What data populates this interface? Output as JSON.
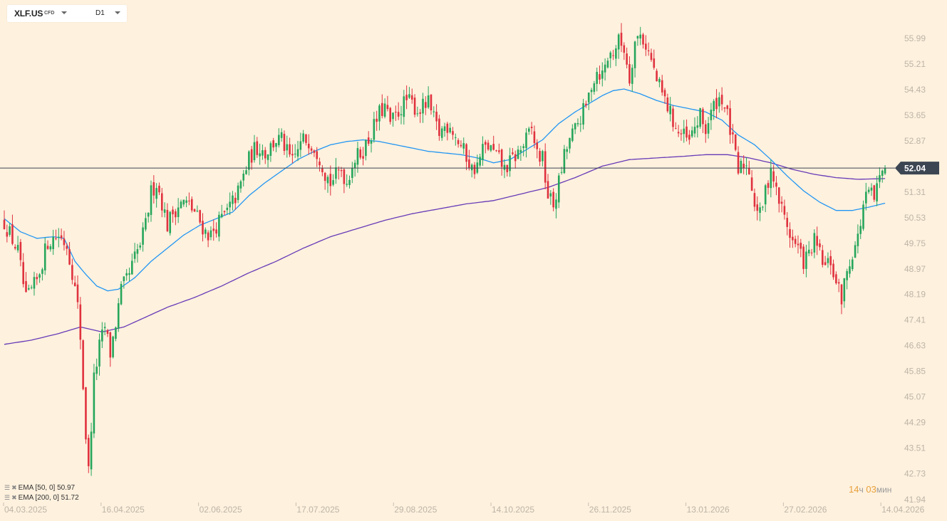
{
  "toolbar": {
    "symbol": "XLF.US",
    "instrument_type": "CFD",
    "timeframe": "D1"
  },
  "indicators": [
    {
      "label": "EMA [50, 0] 50.97",
      "color": "#2196f3"
    },
    {
      "label": "EMA [200, 0] 51.72",
      "color": "#673ab7"
    }
  ],
  "countdown": {
    "hours": "14",
    "hours_unit": "ч",
    "minutes": "03",
    "minutes_unit": "мин"
  },
  "chart_data": {
    "type": "candlestick",
    "timeframe": "D1",
    "up_color": "#26a65b",
    "down_color": "#e0323e",
    "current_price": 52.04,
    "price_ticks": [
      55.99,
      55.21,
      54.43,
      53.65,
      52.87,
      51.31,
      50.53,
      49.75,
      48.97,
      48.19,
      47.41,
      46.63,
      45.85,
      45.07,
      44.29,
      43.51,
      42.73,
      41.94
    ],
    "date_ticks": [
      "04.03.2025",
      "16.04.2025",
      "02.06.2025",
      "17.07.2025",
      "29.08.2025",
      "14.10.2025",
      "26.11.2025",
      "13.01.2026",
      "27.02.2026",
      "14.04.2026"
    ],
    "anchors": [
      [
        0,
        50.4
      ],
      [
        5,
        49.5
      ],
      [
        8,
        48.0
      ],
      [
        12,
        48.6
      ],
      [
        16,
        49.8
      ],
      [
        20,
        50.0
      ],
      [
        23,
        49.7
      ],
      [
        25,
        48.9
      ],
      [
        27,
        47.8
      ],
      [
        28,
        46.9
      ],
      [
        30,
        43.9
      ],
      [
        31,
        42.8
      ],
      [
        33,
        45.6
      ],
      [
        35,
        46.6
      ],
      [
        37,
        47.2
      ],
      [
        39,
        46.4
      ],
      [
        41,
        47.3
      ],
      [
        43,
        48.3
      ],
      [
        46,
        48.8
      ],
      [
        48,
        49.3
      ],
      [
        50,
        49.7
      ],
      [
        52,
        50.3
      ],
      [
        54,
        51.3
      ],
      [
        56,
        51.6
      ],
      [
        58,
        51.0
      ],
      [
        60,
        50.3
      ],
      [
        62,
        50.7
      ],
      [
        64,
        50.9
      ],
      [
        66,
        51.0
      ],
      [
        68,
        50.9
      ],
      [
        70,
        50.7
      ],
      [
        72,
        50.4
      ],
      [
        74,
        50.1
      ],
      [
        76,
        50.0
      ],
      [
        78,
        50.3
      ],
      [
        80,
        50.5
      ],
      [
        82,
        50.7
      ],
      [
        84,
        51.0
      ],
      [
        86,
        51.3
      ],
      [
        88,
        51.8
      ],
      [
        90,
        52.3
      ],
      [
        92,
        52.6
      ],
      [
        94,
        52.7
      ],
      [
        96,
        52.5
      ],
      [
        98,
        52.7
      ],
      [
        100,
        52.9
      ],
      [
        102,
        52.9
      ],
      [
        104,
        52.5
      ],
      [
        106,
        52.2
      ],
      [
        108,
        52.6
      ],
      [
        110,
        52.9
      ],
      [
        112,
        52.9
      ],
      [
        114,
        52.7
      ],
      [
        116,
        52.4
      ],
      [
        118,
        51.9
      ],
      [
        120,
        51.6
      ],
      [
        122,
        51.8
      ],
      [
        124,
        52.0
      ],
      [
        126,
        51.6
      ],
      [
        128,
        52.2
      ],
      [
        130,
        52.4
      ],
      [
        132,
        52.6
      ],
      [
        134,
        52.9
      ],
      [
        136,
        53.3
      ],
      [
        138,
        53.7
      ],
      [
        140,
        53.9
      ],
      [
        142,
        53.4
      ],
      [
        144,
        53.6
      ],
      [
        146,
        53.9
      ],
      [
        148,
        54.1
      ],
      [
        150,
        54.0
      ],
      [
        152,
        53.8
      ],
      [
        154,
        53.9
      ],
      [
        156,
        54.0
      ],
      [
        158,
        53.5
      ],
      [
        160,
        53.1
      ],
      [
        162,
        53.3
      ],
      [
        164,
        53.4
      ],
      [
        166,
        53.0
      ],
      [
        168,
        52.7
      ],
      [
        170,
        52.4
      ],
      [
        172,
        52.0
      ],
      [
        174,
        52.1
      ],
      [
        176,
        52.6
      ],
      [
        178,
        52.7
      ],
      [
        180,
        52.5
      ],
      [
        182,
        52.3
      ],
      [
        184,
        52.0
      ],
      [
        186,
        52.2
      ],
      [
        188,
        52.4
      ],
      [
        190,
        52.6
      ],
      [
        192,
        52.9
      ],
      [
        194,
        53.2
      ],
      [
        196,
        52.5
      ],
      [
        198,
        52.3
      ],
      [
        200,
        51.2
      ],
      [
        202,
        50.9
      ],
      [
        204,
        51.6
      ],
      [
        206,
        52.4
      ],
      [
        208,
        52.9
      ],
      [
        210,
        53.2
      ],
      [
        212,
        53.6
      ],
      [
        214,
        53.9
      ],
      [
        216,
        54.6
      ],
      [
        218,
        55.0
      ],
      [
        220,
        54.9
      ],
      [
        222,
        55.4
      ],
      [
        224,
        55.6
      ],
      [
        226,
        55.9
      ],
      [
        228,
        55.7
      ],
      [
        230,
        54.8
      ],
      [
        232,
        55.9
      ],
      [
        234,
        56.1
      ],
      [
        236,
        55.8
      ],
      [
        238,
        55.3
      ],
      [
        240,
        54.7
      ],
      [
        242,
        54.3
      ],
      [
        244,
        53.9
      ],
      [
        246,
        53.5
      ],
      [
        248,
        53.1
      ],
      [
        250,
        53.0
      ],
      [
        252,
        52.8
      ],
      [
        254,
        53.3
      ],
      [
        256,
        53.6
      ],
      [
        258,
        53.2
      ],
      [
        260,
        53.7
      ],
      [
        262,
        54.1
      ],
      [
        264,
        54.2
      ],
      [
        266,
        53.6
      ],
      [
        268,
        52.8
      ],
      [
        270,
        51.9
      ],
      [
        272,
        52.2
      ],
      [
        274,
        52.0
      ],
      [
        276,
        51.0
      ],
      [
        278,
        50.6
      ],
      [
        280,
        51.3
      ],
      [
        282,
        52.1
      ],
      [
        284,
        51.3
      ],
      [
        286,
        50.8
      ],
      [
        288,
        50.3
      ],
      [
        290,
        49.8
      ],
      [
        292,
        49.6
      ],
      [
        294,
        49.2
      ],
      [
        296,
        49.4
      ],
      [
        298,
        49.8
      ],
      [
        300,
        49.4
      ],
      [
        302,
        49.0
      ],
      [
        304,
        49.2
      ],
      [
        306,
        48.5
      ],
      [
        308,
        48.1
      ],
      [
        310,
        48.9
      ],
      [
        312,
        49.5
      ],
      [
        314,
        49.9
      ],
      [
        316,
        50.9
      ],
      [
        318,
        51.3
      ],
      [
        320,
        51.1
      ],
      [
        322,
        51.7
      ],
      [
        324,
        52.04
      ]
    ],
    "ema50": [
      [
        0,
        50.5
      ],
      [
        6,
        50.1
      ],
      [
        12,
        49.9
      ],
      [
        18,
        49.95
      ],
      [
        22,
        49.9
      ],
      [
        26,
        49.2
      ],
      [
        30,
        48.8
      ],
      [
        34,
        48.45
      ],
      [
        38,
        48.3
      ],
      [
        42,
        48.35
      ],
      [
        48,
        48.7
      ],
      [
        54,
        49.2
      ],
      [
        60,
        49.6
      ],
      [
        66,
        50.0
      ],
      [
        72,
        50.3
      ],
      [
        78,
        50.5
      ],
      [
        84,
        50.7
      ],
      [
        90,
        51.2
      ],
      [
        96,
        51.6
      ],
      [
        102,
        51.95
      ],
      [
        108,
        52.3
      ],
      [
        114,
        52.55
      ],
      [
        120,
        52.75
      ],
      [
        126,
        52.85
      ],
      [
        132,
        52.9
      ],
      [
        138,
        52.85
      ],
      [
        144,
        52.75
      ],
      [
        150,
        52.65
      ],
      [
        156,
        52.55
      ],
      [
        162,
        52.5
      ],
      [
        168,
        52.45
      ],
      [
        174,
        52.35
      ],
      [
        180,
        52.2
      ],
      [
        186,
        52.3
      ],
      [
        192,
        52.6
      ],
      [
        198,
        52.9
      ],
      [
        204,
        53.4
      ],
      [
        210,
        53.75
      ],
      [
        216,
        54.05
      ],
      [
        220,
        54.25
      ],
      [
        224,
        54.4
      ],
      [
        228,
        54.45
      ],
      [
        234,
        54.3
      ],
      [
        240,
        54.1
      ],
      [
        246,
        53.95
      ],
      [
        252,
        53.85
      ],
      [
        258,
        53.75
      ],
      [
        264,
        53.5
      ],
      [
        270,
        53.05
      ],
      [
        276,
        52.75
      ],
      [
        282,
        52.3
      ],
      [
        288,
        51.8
      ],
      [
        294,
        51.35
      ],
      [
        300,
        51.0
      ],
      [
        306,
        50.75
      ],
      [
        312,
        50.75
      ],
      [
        318,
        50.85
      ],
      [
        324,
        50.97
      ]
    ],
    "ema200": [
      [
        0,
        46.67
      ],
      [
        10,
        46.8
      ],
      [
        20,
        47.0
      ],
      [
        28,
        47.2
      ],
      [
        36,
        47.05
      ],
      [
        44,
        47.2
      ],
      [
        52,
        47.5
      ],
      [
        60,
        47.8
      ],
      [
        70,
        48.1
      ],
      [
        80,
        48.45
      ],
      [
        90,
        48.85
      ],
      [
        100,
        49.2
      ],
      [
        110,
        49.6
      ],
      [
        120,
        49.95
      ],
      [
        130,
        50.2
      ],
      [
        140,
        50.45
      ],
      [
        150,
        50.65
      ],
      [
        160,
        50.8
      ],
      [
        170,
        50.95
      ],
      [
        180,
        51.05
      ],
      [
        190,
        51.25
      ],
      [
        200,
        51.45
      ],
      [
        210,
        51.75
      ],
      [
        220,
        52.1
      ],
      [
        230,
        52.3
      ],
      [
        240,
        52.35
      ],
      [
        250,
        52.4
      ],
      [
        258,
        52.45
      ],
      [
        266,
        52.45
      ],
      [
        274,
        52.35
      ],
      [
        282,
        52.2
      ],
      [
        290,
        52.0
      ],
      [
        298,
        51.85
      ],
      [
        306,
        51.75
      ],
      [
        314,
        51.7
      ],
      [
        324,
        51.72
      ]
    ]
  }
}
